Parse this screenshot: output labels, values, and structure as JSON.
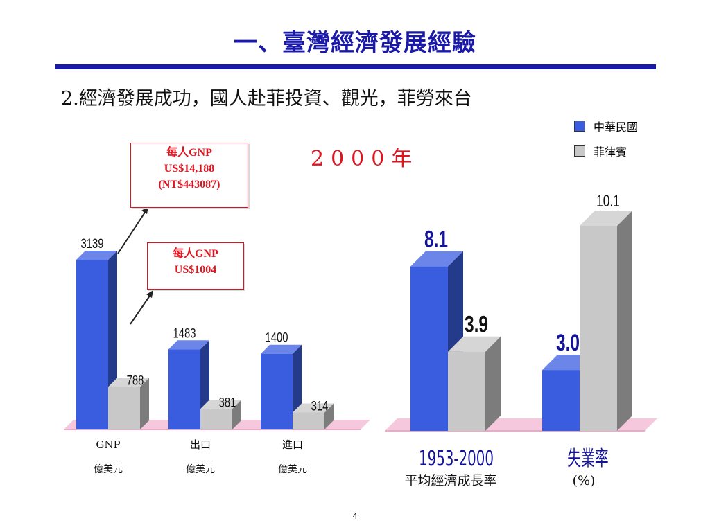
{
  "slide": {
    "title": "一、臺灣經濟發展經驗",
    "subtitle": "2.經濟發展成功，國人赴菲投資、觀光，菲勞來台",
    "year": "2000年",
    "page_number": "4"
  },
  "legend": [
    {
      "label": "中華民國",
      "color": "#3a5de0"
    },
    {
      "label": "菲律賓",
      "color": "#c8c8c8"
    }
  ],
  "callouts": [
    {
      "lines": [
        "每人GNP",
        "US$14,188",
        "(NT$443087)"
      ]
    },
    {
      "lines": [
        "每人GNP",
        "US$1004"
      ]
    }
  ],
  "chart_data": [
    {
      "type": "bar",
      "title": "",
      "categories": [
        "GNP",
        "出口",
        "進口"
      ],
      "category_units": [
        "億美元",
        "億美元",
        "億美元"
      ],
      "series": [
        {
          "name": "中華民國",
          "values": [
            3139,
            1483,
            1400
          ],
          "color": "#3a5de0"
        },
        {
          "name": "菲律賓",
          "values": [
            788,
            381,
            314
          ],
          "color": "#c8c8c8"
        }
      ],
      "ylim": [
        0,
        3600
      ],
      "grid": false
    },
    {
      "type": "bar",
      "title": "",
      "categories": [
        "1953-2000",
        "失業率"
      ],
      "category_sublabels": [
        "平均經濟成長率",
        "(%)"
      ],
      "series": [
        {
          "name": "中華民國",
          "values": [
            8.1,
            3.0
          ],
          "color": "#3a5de0"
        },
        {
          "name": "菲律賓",
          "values": [
            3.9,
            10.1
          ],
          "color": "#c8c8c8"
        }
      ],
      "value_labels": [
        [
          "8.1",
          "3.0"
        ],
        [
          "3.9",
          "10.1"
        ]
      ],
      "ylim": [
        0,
        12
      ],
      "grid": false
    }
  ]
}
